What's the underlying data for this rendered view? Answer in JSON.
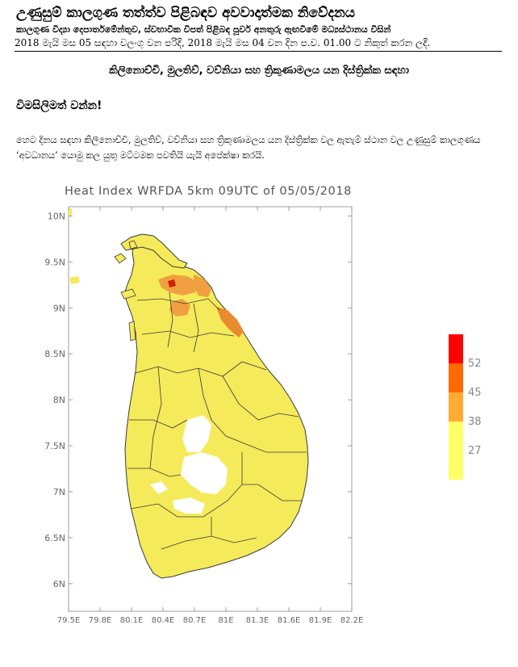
{
  "header": {
    "title": "උණුසුම් කාලගුණ තත්ත්ව පිළිබඳව අවවාදාත්මක නිවේදනය",
    "subtitle": "කාලගුණ විද්‍යා දෙපාර්තමේන්තුව, ස්වභාවික විපත් පිළිබඳ පූර්ව අනතුරු ඇඟවීමේ මධ්‍යස්ථානය විසින්",
    "date_line": "2018 මැයි මස 05 සඳහා වලංගු වන පරිදි, 2018 මැයි මස 04 වන දින ප.ව. 01.00 ට නිකුත් කරන ලදී."
  },
  "districts_line": "කිලිනොච්චි, මුලතිව්, වව්නියා සහ ත්‍රිකුණාමලය යන දිස්ත්‍රික්ක සඳහා",
  "attention_heading": "විමසිලිමත් වන්න!",
  "paragraph": "හෙට දිනය සඳහා කිලිනොච්චි, මුලතිව්, වව්නියා සහ ත්‍රිකුණාමලය යන දිස්ත්‍රික්ක වල ඇතැම් ස්ථාන වල උණුසුම් කාලගුණය ‘අවධානය’ යොමු කල යුතු මට්ටමක පවතියි යැයි අපේක්ෂා කරයි.",
  "chart_data": {
    "type": "heatmap",
    "title": "Heat Index WRFDA 5km 09UTC of 05/05/2018",
    "y_ticks": [
      "10N",
      "9.5N",
      "9N",
      "8.5N",
      "8N",
      "7.5N",
      "7N",
      "6.5N",
      "6N"
    ],
    "y_values": [
      10,
      9.5,
      9,
      8.5,
      8,
      7.5,
      7,
      6.5,
      6
    ],
    "x_ticks": [
      "79.5E",
      "79.8E",
      "80.1E",
      "80.4E",
      "80.7E",
      "81E",
      "81.3E",
      "81.6E",
      "81.9E",
      "82.2E"
    ],
    "x_values": [
      79.5,
      79.8,
      80.1,
      80.4,
      80.7,
      81.0,
      81.3,
      81.6,
      81.9,
      82.2
    ],
    "xlim": [
      79.5,
      82.2
    ],
    "ylim": [
      5.7,
      10.1
    ],
    "colorbar": {
      "labels": [
        "52",
        "45",
        "38",
        "27"
      ],
      "colors": [
        "#ff0000",
        "#ff6a00",
        "#ffaa33",
        "#ffff66"
      ]
    },
    "colors": {
      "land": "#f5ea5a",
      "orange": "#f0a040",
      "dark_orange": "#e07020",
      "red": "#d02000",
      "white": "#ffffff"
    }
  }
}
